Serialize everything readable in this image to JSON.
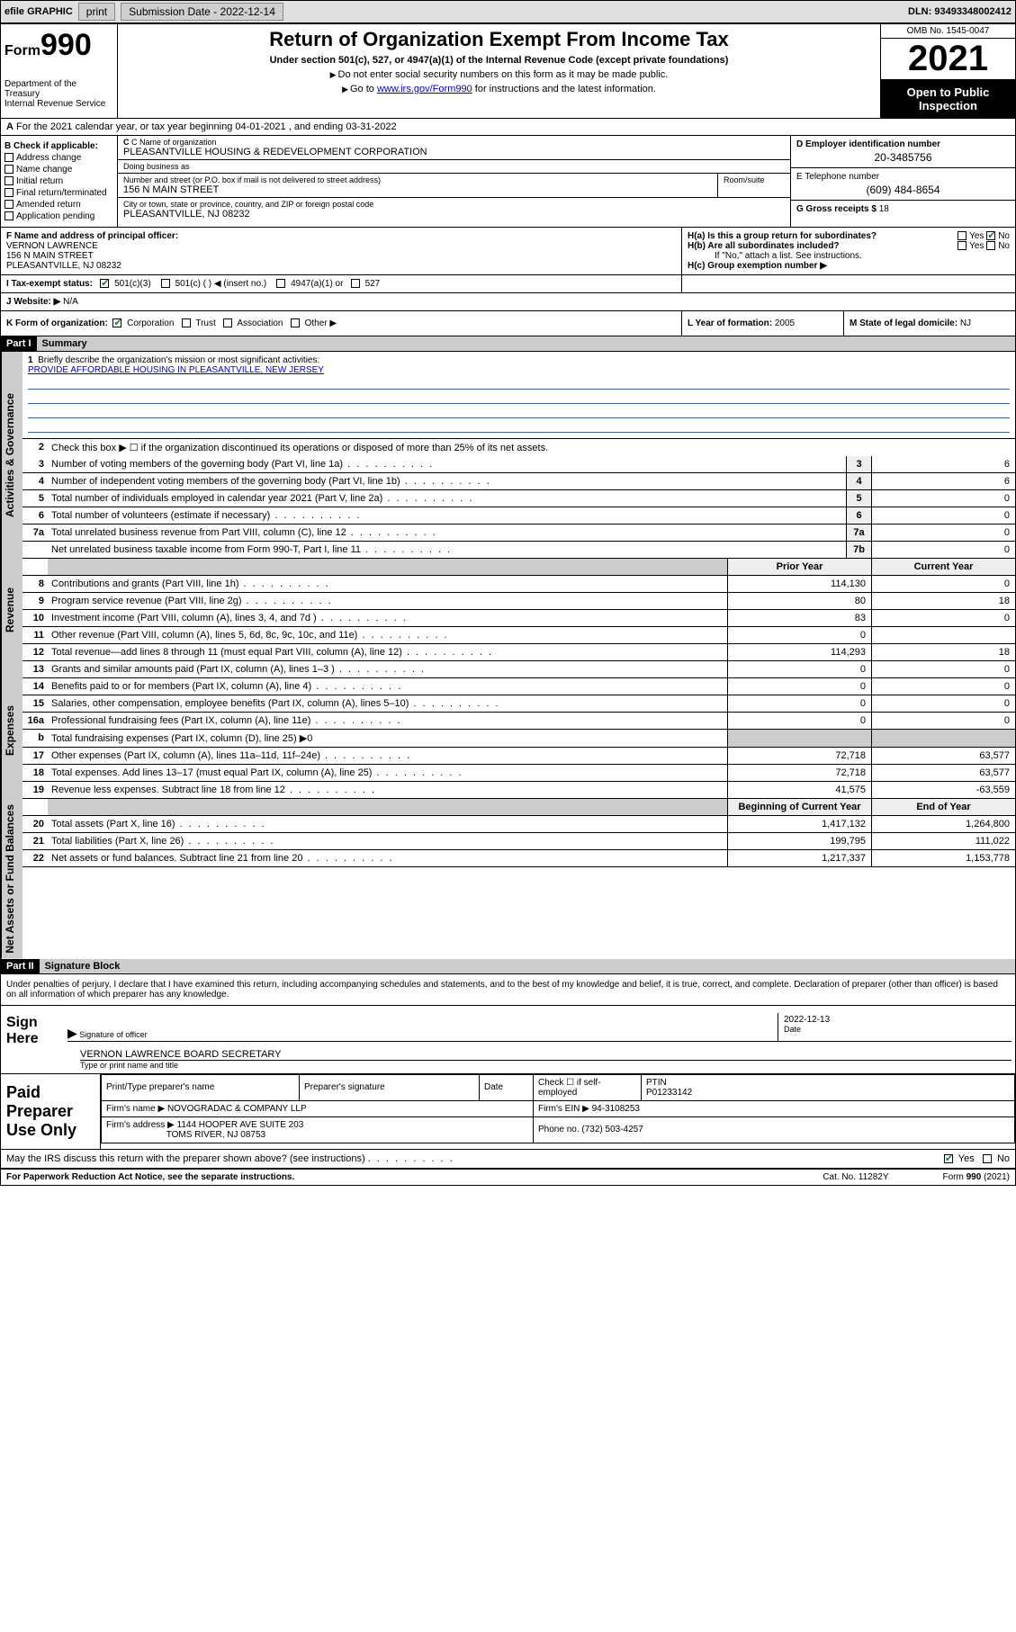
{
  "topbar": {
    "efile": "efile GRAPHIC",
    "print": "print",
    "subdate_label": "Submission Date - 2022-12-14",
    "dln": "DLN: 93493348002412"
  },
  "header": {
    "form_label": "Form",
    "form_no": "990",
    "title": "Return of Organization Exempt From Income Tax",
    "sub": "Under section 501(c), 527, or 4947(a)(1) of the Internal Revenue Code (except private foundations)",
    "note1": "Do not enter social security numbers on this form as it may be made public.",
    "note2_pre": "Go to ",
    "note2_link": "www.irs.gov/Form990",
    "note2_post": " for instructions and the latest information.",
    "dept": "Department of the Treasury\nInternal Revenue Service",
    "omb": "OMB No. 1545-0047",
    "year": "2021",
    "open": "Open to Public Inspection"
  },
  "rowA": {
    "text": "For the 2021 calendar year, or tax year beginning 04-01-2021    , and ending 03-31-2022"
  },
  "boxB": {
    "label": "B Check if applicable:",
    "items": [
      "Address change",
      "Name change",
      "Initial return",
      "Final return/terminated",
      "Amended return",
      "Application pending"
    ]
  },
  "boxC": {
    "name_lab": "C Name of organization",
    "name": "PLEASANTVILLE HOUSING & REDEVELOPMENT CORPORATION",
    "dba_lab": "Doing business as",
    "addr_lab": "Number and street (or P.O. box if mail is not delivered to street address)",
    "addr": "156 N MAIN STREET",
    "room_lab": "Room/suite",
    "city_lab": "City or town, state or province, country, and ZIP or foreign postal code",
    "city": "PLEASANTVILLE, NJ  08232"
  },
  "boxD": {
    "lab": "D Employer identification number",
    "val": "20-3485756"
  },
  "boxE": {
    "lab": "E Telephone number",
    "val": "(609) 484-8654"
  },
  "boxG": {
    "lab": "G Gross receipts $",
    "val": "18"
  },
  "boxF": {
    "lab": "F  Name and address of principal officer:",
    "name": "VERNON LAWRENCE",
    "addr1": "156 N MAIN STREET",
    "addr2": "PLEASANTVILLE, NJ  08232"
  },
  "boxH": {
    "a": "H(a)  Is this a group return for subordinates?",
    "b": "H(b)  Are all subordinates included?",
    "note": "If \"No,\" attach a list. See instructions.",
    "c": "H(c)  Group exemption number ▶"
  },
  "rowI": {
    "lab": "I   Tax-exempt status:",
    "opt1": "501(c)(3)",
    "opt2": "501(c) (  ) ◀ (insert no.)",
    "opt3": "4947(a)(1) or",
    "opt4": "527"
  },
  "rowJ": {
    "lab": "J   Website: ▶",
    "val": "N/A"
  },
  "rowK": {
    "lab": "K Form of organization:",
    "opts": [
      "Corporation",
      "Trust",
      "Association",
      "Other ▶"
    ]
  },
  "rowL": {
    "lab": "L Year of formation:",
    "val": "2005"
  },
  "rowM": {
    "lab": "M State of legal domicile:",
    "val": "NJ"
  },
  "part1": {
    "hdr": "Part I",
    "title": "Summary",
    "line1": "Briefly describe the organization's mission or most significant activities:",
    "mission": "PROVIDE AFFORDABLE HOUSING IN PLEASANTVILLE, NEW JERSEY",
    "line2": "Check this box ▶ ☐  if the organization discontinued its operations or disposed of more than 25% of its net assets.",
    "sidebars": {
      "gov": "Activities & Governance",
      "rev": "Revenue",
      "exp": "Expenses",
      "net": "Net Assets or Fund Balances"
    },
    "cols": {
      "prior": "Prior Year",
      "current": "Current Year",
      "beg": "Beginning of Current Year",
      "end": "End of Year"
    },
    "lines_gov": [
      {
        "n": "3",
        "d": "Number of voting members of the governing body (Part VI, line 1a)",
        "box": "3",
        "v": "6"
      },
      {
        "n": "4",
        "d": "Number of independent voting members of the governing body (Part VI, line 1b)",
        "box": "4",
        "v": "6"
      },
      {
        "n": "5",
        "d": "Total number of individuals employed in calendar year 2021 (Part V, line 2a)",
        "box": "5",
        "v": "0"
      },
      {
        "n": "6",
        "d": "Total number of volunteers (estimate if necessary)",
        "box": "6",
        "v": "0"
      },
      {
        "n": "7a",
        "d": "Total unrelated business revenue from Part VIII, column (C), line 12",
        "box": "7a",
        "v": "0"
      },
      {
        "n": "",
        "d": "Net unrelated business taxable income from Form 990-T, Part I, line 11",
        "box": "7b",
        "v": "0"
      }
    ],
    "lines_rev": [
      {
        "n": "8",
        "d": "Contributions and grants (Part VIII, line 1h)",
        "p": "114,130",
        "c": "0"
      },
      {
        "n": "9",
        "d": "Program service revenue (Part VIII, line 2g)",
        "p": "80",
        "c": "18"
      },
      {
        "n": "10",
        "d": "Investment income (Part VIII, column (A), lines 3, 4, and 7d )",
        "p": "83",
        "c": "0"
      },
      {
        "n": "11",
        "d": "Other revenue (Part VIII, column (A), lines 5, 6d, 8c, 9c, 10c, and 11e)",
        "p": "0",
        "c": ""
      },
      {
        "n": "12",
        "d": "Total revenue—add lines 8 through 11 (must equal Part VIII, column (A), line 12)",
        "p": "114,293",
        "c": "18"
      }
    ],
    "lines_exp": [
      {
        "n": "13",
        "d": "Grants and similar amounts paid (Part IX, column (A), lines 1–3 )",
        "p": "0",
        "c": "0"
      },
      {
        "n": "14",
        "d": "Benefits paid to or for members (Part IX, column (A), line 4)",
        "p": "0",
        "c": "0"
      },
      {
        "n": "15",
        "d": "Salaries, other compensation, employee benefits (Part IX, column (A), lines 5–10)",
        "p": "0",
        "c": "0"
      },
      {
        "n": "16a",
        "d": "Professional fundraising fees (Part IX, column (A), line 11e)",
        "p": "0",
        "c": "0"
      },
      {
        "n": "b",
        "d": "Total fundraising expenses (Part IX, column (D), line 25) ▶0",
        "p": "",
        "c": "",
        "shaded": true
      },
      {
        "n": "17",
        "d": "Other expenses (Part IX, column (A), lines 11a–11d, 11f–24e)",
        "p": "72,718",
        "c": "63,577"
      },
      {
        "n": "18",
        "d": "Total expenses. Add lines 13–17 (must equal Part IX, column (A), line 25)",
        "p": "72,718",
        "c": "63,577"
      },
      {
        "n": "19",
        "d": "Revenue less expenses. Subtract line 18 from line 12",
        "p": "41,575",
        "c": "-63,559"
      }
    ],
    "lines_net": [
      {
        "n": "20",
        "d": "Total assets (Part X, line 16)",
        "p": "1,417,132",
        "c": "1,264,800"
      },
      {
        "n": "21",
        "d": "Total liabilities (Part X, line 26)",
        "p": "199,795",
        "c": "111,022"
      },
      {
        "n": "22",
        "d": "Net assets or fund balances. Subtract line 21 from line 20",
        "p": "1,217,337",
        "c": "1,153,778"
      }
    ]
  },
  "part2": {
    "hdr": "Part II",
    "title": "Signature Block",
    "decl": "Under penalties of perjury, I declare that I have examined this return, including accompanying schedules and statements, and to the best of my knowledge and belief, it is true, correct, and complete. Declaration of preparer (other than officer) is based on all information of which preparer has any knowledge.",
    "sign_here": "Sign Here",
    "sig_officer": "Signature of officer",
    "sig_date": "2022-12-13",
    "date_lab": "Date",
    "officer_name": "VERNON LAWRENCE  BOARD SECRETARY",
    "type_name": "Type or print name and title",
    "paid": "Paid Preparer Use Only",
    "prep_name_lab": "Print/Type preparer's name",
    "prep_sig_lab": "Preparer's signature",
    "prep_date_lab": "Date",
    "check_se": "Check ☐ if self-employed",
    "ptin_lab": "PTIN",
    "ptin": "P01233142",
    "firm_name_lab": "Firm's name    ▶",
    "firm_name": "NOVOGRADAC & COMPANY LLP",
    "firm_ein_lab": "Firm's EIN ▶",
    "firm_ein": "94-3108253",
    "firm_addr_lab": "Firm's address ▶",
    "firm_addr1": "1144 HOOPER AVE SUITE 203",
    "firm_addr2": "TOMS RIVER, NJ  08753",
    "phone_lab": "Phone no.",
    "phone": "(732) 503-4257",
    "may_irs": "May the IRS discuss this return with the preparer shown above? (see instructions)",
    "yes": "Yes",
    "no": "No"
  },
  "footer": {
    "pra": "For Paperwork Reduction Act Notice, see the separate instructions.",
    "cat": "Cat. No. 11282Y",
    "form": "Form 990 (2021)"
  }
}
